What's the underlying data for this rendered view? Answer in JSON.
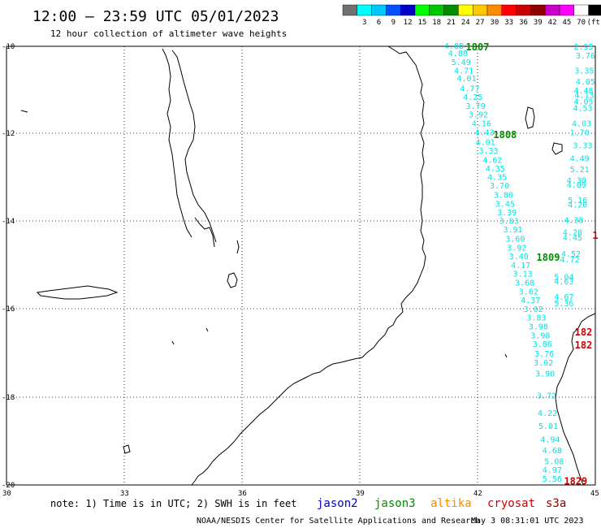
{
  "header": {
    "title": "12:00 – 23:59 UTC 05/01/2023",
    "subtitle": "12 hour collection of altimeter wave heights"
  },
  "legend": {
    "swatches": [
      {
        "color": "#707070",
        "label": ""
      },
      {
        "color": "#00ffff",
        "label": "3"
      },
      {
        "color": "#00c8ff",
        "label": "6"
      },
      {
        "color": "#0050ff",
        "label": "9"
      },
      {
        "color": "#0000c8",
        "label": "12"
      },
      {
        "color": "#00ff00",
        "label": "15"
      },
      {
        "color": "#00c800",
        "label": "18"
      },
      {
        "color": "#008c00",
        "label": "21"
      },
      {
        "color": "#ffff00",
        "label": "24"
      },
      {
        "color": "#ffc800",
        "label": "27"
      },
      {
        "color": "#ff8c00",
        "label": "30"
      },
      {
        "color": "#ff0000",
        "label": "33"
      },
      {
        "color": "#c80000",
        "label": "36"
      },
      {
        "color": "#8c0000",
        "label": "39"
      },
      {
        "color": "#c800c8",
        "label": "42"
      },
      {
        "color": "#ff00ff",
        "label": "45"
      },
      {
        "color": "#ffffff",
        "label": "70"
      },
      {
        "color": "#000000",
        "label": "(ft)"
      }
    ]
  },
  "axes": {
    "lat_labels": [
      "-10",
      "-12",
      "-14",
      "-16",
      "-18",
      "-20"
    ],
    "lon_labels": [
      "30",
      "33",
      "36",
      "39",
      "42",
      "45"
    ]
  },
  "footer": {
    "note": "note: 1) Time is in UTC; 2) SWH is in feet",
    "satellites": [
      {
        "name": "jason2",
        "color": "#0000c8"
      },
      {
        "name": "jason3",
        "color": "#008c00"
      },
      {
        "name": "altika",
        "color": "#ff8c00"
      },
      {
        "name": "cryosat",
        "color": "#cc0000"
      },
      {
        "name": "s3a",
        "color": "#8c0000"
      }
    ],
    "credit": "NOAA/NESDIS Center for Satellite Applications and Research",
    "timestamp": "May  3 08:31:01 UTC 2023"
  },
  "colors": {
    "obs": "#00e5e5",
    "jason3": "#008c00",
    "cryosat": "#cc0000"
  },
  "map_data": {
    "extent": {
      "lon": [
        30,
        45
      ],
      "lat": [
        -20,
        -10
      ]
    },
    "pass_labels": [
      {
        "text": "1807",
        "lon": 42.0,
        "lat": -10.0,
        "sat": "jason3"
      },
      {
        "text": "1808",
        "lon": 42.7,
        "lat": -12.0,
        "sat": "jason3"
      },
      {
        "text": "1809",
        "lon": 43.8,
        "lat": -14.8,
        "sat": "jason3"
      },
      {
        "text": "1829",
        "lon": 44.5,
        "lat": -19.9,
        "sat": "cryosat"
      },
      {
        "text": "182",
        "lon": 44.7,
        "lat": -16.5,
        "sat": "cryosat"
      },
      {
        "text": "182",
        "lon": 44.7,
        "lat": -16.8,
        "sat": "cryosat"
      },
      {
        "text": "1",
        "lon": 45.0,
        "lat": -14.3,
        "sat": "cryosat"
      }
    ],
    "tracks": [
      {
        "name": "track-a",
        "points": [
          {
            "lon": 41.4,
            "lat": -9.98,
            "v": "4.88"
          },
          {
            "lon": 41.5,
            "lat": -10.15,
            "v": "4.88"
          },
          {
            "lon": 41.58,
            "lat": -10.35,
            "v": "5.49"
          },
          {
            "lon": 41.65,
            "lat": -10.55,
            "v": "4.71"
          },
          {
            "lon": 41.72,
            "lat": -10.72,
            "v": "4.01"
          },
          {
            "lon": 41.8,
            "lat": -10.95,
            "v": "4.77"
          },
          {
            "lon": 41.88,
            "lat": -11.15,
            "v": "4.25"
          },
          {
            "lon": 41.95,
            "lat": -11.35,
            "v": "3.79"
          },
          {
            "lon": 42.02,
            "lat": -11.55,
            "v": "3.92"
          },
          {
            "lon": 42.1,
            "lat": -11.75,
            "v": "4.16"
          },
          {
            "lon": 42.18,
            "lat": -11.95,
            "v": "4.43"
          },
          {
            "lon": 42.2,
            "lat": -12.18,
            "v": "4.01"
          },
          {
            "lon": 42.28,
            "lat": -12.37,
            "v": "3.33"
          },
          {
            "lon": 42.38,
            "lat": -12.58,
            "v": "4.62"
          },
          {
            "lon": 42.45,
            "lat": -12.78,
            "v": "4.35"
          },
          {
            "lon": 42.5,
            "lat": -12.97,
            "v": "4.35"
          },
          {
            "lon": 42.56,
            "lat": -13.17,
            "v": "3.70"
          },
          {
            "lon": 42.66,
            "lat": -13.38,
            "v": "3.80"
          },
          {
            "lon": 42.7,
            "lat": -13.58,
            "v": "3.45"
          },
          {
            "lon": 42.75,
            "lat": -13.78,
            "v": "3.39"
          },
          {
            "lon": 42.8,
            "lat": -13.97,
            "v": "3.83"
          },
          {
            "lon": 42.9,
            "lat": -14.17,
            "v": "3.91"
          },
          {
            "lon": 42.96,
            "lat": -14.38,
            "v": "3.60"
          },
          {
            "lon": 43.0,
            "lat": -14.58,
            "v": "3.92"
          },
          {
            "lon": 43.05,
            "lat": -14.78,
            "v": "3.40"
          },
          {
            "lon": 43.1,
            "lat": -14.98,
            "v": "4.17"
          },
          {
            "lon": 43.15,
            "lat": -15.18,
            "v": "3.13"
          },
          {
            "lon": 43.2,
            "lat": -15.38,
            "v": "3.68"
          },
          {
            "lon": 43.3,
            "lat": -15.58,
            "v": "3.62"
          },
          {
            "lon": 43.35,
            "lat": -15.78,
            "v": "4.37"
          },
          {
            "lon": 43.42,
            "lat": -15.98,
            "v": "3.02"
          },
          {
            "lon": 43.5,
            "lat": -16.18,
            "v": "3.83"
          },
          {
            "lon": 43.55,
            "lat": -16.38,
            "v": "3.98"
          },
          {
            "lon": 43.6,
            "lat": -16.58,
            "v": "3.98"
          },
          {
            "lon": 43.65,
            "lat": -16.78,
            "v": "3.86"
          },
          {
            "lon": 43.7,
            "lat": -17.0,
            "v": "3.76"
          },
          {
            "lon": 43.68,
            "lat": -17.2,
            "v": "3.02"
          },
          {
            "lon": 43.72,
            "lat": -17.45,
            "v": "3.90"
          },
          {
            "lon": 43.76,
            "lat": -17.95,
            "v": "3.72"
          },
          {
            "lon": 43.78,
            "lat": -18.35,
            "v": "4.22"
          },
          {
            "lon": 43.8,
            "lat": -18.65,
            "v": "5.01"
          },
          {
            "lon": 43.85,
            "lat": -18.95,
            "v": "4.94"
          },
          {
            "lon": 43.9,
            "lat": -19.2,
            "v": "4.68"
          },
          {
            "lon": 43.95,
            "lat": -19.45,
            "v": "5.08"
          },
          {
            "lon": 43.9,
            "lat": -19.65,
            "v": "4.97"
          },
          {
            "lon": 43.9,
            "lat": -19.85,
            "v": "5.56"
          }
        ]
      },
      {
        "name": "track-b",
        "points": [
          {
            "lon": 44.7,
            "lat": -10.0,
            "v": "2.95"
          },
          {
            "lon": 44.75,
            "lat": -10.2,
            "v": "3.76"
          },
          {
            "lon": 44.72,
            "lat": -10.55,
            "v": "3.35"
          },
          {
            "lon": 44.75,
            "lat": -10.8,
            "v": "4.05"
          },
          {
            "lon": 44.7,
            "lat": -11.0,
            "v": "4.48"
          },
          {
            "lon": 44.72,
            "lat": -11.1,
            "v": "4.13"
          },
          {
            "lon": 44.7,
            "lat": -11.25,
            "v": "4.05"
          },
          {
            "lon": 44.68,
            "lat": -11.4,
            "v": "4.53"
          },
          {
            "lon": 44.65,
            "lat": -11.75,
            "v": "4.03"
          },
          {
            "lon": 44.6,
            "lat": -11.95,
            "v": "1.70"
          },
          {
            "lon": 44.68,
            "lat": -12.25,
            "v": "3.33"
          },
          {
            "lon": 44.6,
            "lat": -12.55,
            "v": "4.49"
          },
          {
            "lon": 44.6,
            "lat": -12.8,
            "v": "5.21"
          },
          {
            "lon": 44.52,
            "lat": -13.05,
            "v": "4.30"
          },
          {
            "lon": 44.52,
            "lat": -13.15,
            "v": "4.09"
          },
          {
            "lon": 44.55,
            "lat": -13.5,
            "v": "5.16"
          },
          {
            "lon": 44.55,
            "lat": -13.6,
            "v": "4.20"
          },
          {
            "lon": 44.45,
            "lat": -13.95,
            "v": "4.38"
          },
          {
            "lon": 44.42,
            "lat": -14.23,
            "v": "4.20"
          },
          {
            "lon": 44.42,
            "lat": -14.35,
            "v": "4.45"
          },
          {
            "lon": 44.38,
            "lat": -14.72,
            "v": "4.52"
          },
          {
            "lon": 44.35,
            "lat": -14.85,
            "v": "4.72"
          },
          {
            "lon": 44.2,
            "lat": -15.25,
            "v": "5.04"
          },
          {
            "lon": 44.2,
            "lat": -15.35,
            "v": "4.63"
          },
          {
            "lon": 44.2,
            "lat": -15.7,
            "v": "4.67"
          },
          {
            "lon": 44.2,
            "lat": -15.85,
            "v": "5.36"
          }
        ]
      }
    ]
  }
}
